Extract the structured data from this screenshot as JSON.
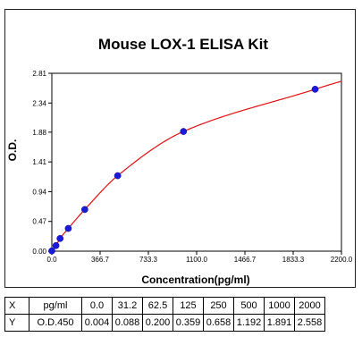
{
  "chart_data": {
    "type": "scatter",
    "title": "Mouse LOX-1 ELISA Kit",
    "xlabel": "Concentration(pg/ml)",
    "ylabel": "O.D.",
    "xlim": [
      0,
      2200
    ],
    "ylim": [
      0,
      2.81
    ],
    "x_ticks": [
      "0.0",
      "366.7",
      "733.3",
      "1100.0",
      "1466.7",
      "1833.3",
      "2200.0"
    ],
    "y_ticks": [
      "0.00",
      "0.47",
      "0.94",
      "1.41",
      "1.88",
      "2.34",
      "2.81"
    ],
    "grid": false,
    "point_color": "#1a1adc",
    "curve_color": "#e01010",
    "points": {
      "x": [
        0,
        31.2,
        62.5,
        125,
        250,
        500,
        1000,
        2000
      ],
      "y": [
        0.004,
        0.088,
        0.2,
        0.359,
        0.658,
        1.192,
        1.891,
        2.558
      ]
    },
    "fit_curve": {
      "type": "line",
      "x_range": [
        0,
        2200
      ]
    }
  },
  "table": {
    "rows": [
      {
        "label": "X",
        "unit": "pg/ml",
        "values": [
          "0.0",
          "31.2",
          "62.5",
          "125",
          "250",
          "500",
          "1000",
          "2000"
        ]
      },
      {
        "label": "Y",
        "unit": "O.D.450",
        "values": [
          "0.004",
          "0.088",
          "0.200",
          "0.359",
          "0.658",
          "1.192",
          "1.891",
          "2.558"
        ]
      }
    ]
  }
}
